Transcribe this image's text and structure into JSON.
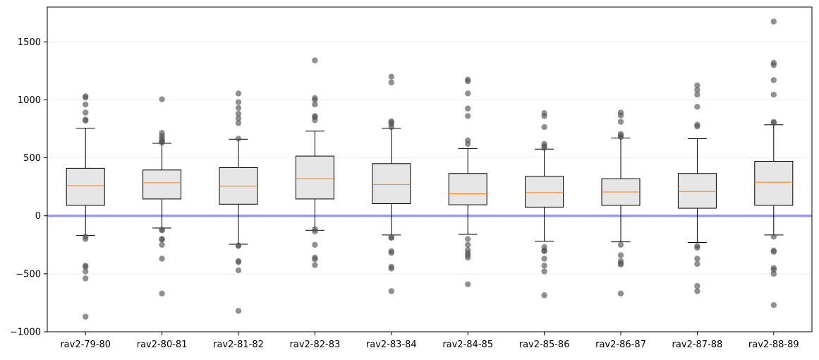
{
  "chart_data": {
    "type": "boxplot",
    "categories": [
      "rav2-79-80",
      "rav2-80-81",
      "rav2-81-82",
      "rav2-82-83",
      "rav2-83-84",
      "rav2-84-85",
      "rav2-85-86",
      "rav2-86-87",
      "rav2-87-88",
      "rav2-88-89"
    ],
    "ylim": [
      -1000,
      1800
    ],
    "yticks": [
      -1000,
      -500,
      0,
      500,
      1000,
      1500
    ],
    "ytick_labels": [
      "−1000",
      "−500",
      "0",
      "500",
      "1000",
      "1500"
    ],
    "grid": "horizontal",
    "reference_line": {
      "y": 0,
      "color": "#9999ee"
    },
    "colors": {
      "box_fill": "#e6e6e6",
      "median": "#ff7f0e",
      "outlier": "#555555",
      "grid": "#eeeeee"
    },
    "boxes": [
      {
        "q1": 90,
        "median": 260,
        "q3": 410,
        "whisker_low": -170,
        "whisker_high": 755,
        "outliers": [
          1030,
          1020,
          960,
          890,
          830,
          820,
          -180,
          -200,
          -430,
          -440,
          -480,
          -540,
          -870
        ]
      },
      {
        "q1": 145,
        "median": 285,
        "q3": 395,
        "whisker_low": -105,
        "whisker_high": 625,
        "outliers": [
          1005,
          715,
          690,
          670,
          650,
          640,
          630,
          -120,
          -125,
          -200,
          -205,
          -250,
          -370,
          -670
        ]
      },
      {
        "q1": 100,
        "median": 255,
        "q3": 415,
        "whisker_low": -245,
        "whisker_high": 660,
        "outliers": [
          1055,
          980,
          930,
          880,
          840,
          800,
          665,
          -255,
          -260,
          -390,
          -400,
          -470,
          -820
        ]
      },
      {
        "q1": 145,
        "median": 320,
        "q3": 515,
        "whisker_low": -125,
        "whisker_high": 730,
        "outliers": [
          1340,
          1015,
          1000,
          960,
          860,
          850,
          825,
          -115,
          -135,
          -250,
          -360,
          -375,
          -425
        ]
      },
      {
        "q1": 105,
        "median": 270,
        "q3": 450,
        "whisker_low": -165,
        "whisker_high": 755,
        "outliers": [
          1200,
          1150,
          815,
          805,
          790,
          765,
          -185,
          -190,
          -305,
          -320,
          -440,
          -455,
          -650
        ]
      },
      {
        "q1": 95,
        "median": 190,
        "q3": 365,
        "whisker_low": -160,
        "whisker_high": 580,
        "outliers": [
          1175,
          1160,
          1055,
          925,
          860,
          650,
          620,
          -200,
          -250,
          -295,
          -320,
          -340,
          -360,
          -590
        ]
      },
      {
        "q1": 75,
        "median": 200,
        "q3": 340,
        "whisker_low": -220,
        "whisker_high": 575,
        "outliers": [
          885,
          860,
          765,
          620,
          600,
          585,
          -270,
          -300,
          -305,
          -370,
          -430,
          -480,
          -685
        ]
      },
      {
        "q1": 90,
        "median": 205,
        "q3": 320,
        "whisker_low": -225,
        "whisker_high": 670,
        "outliers": [
          890,
          865,
          810,
          705,
          690,
          680,
          -250,
          -340,
          -390,
          -410,
          -420,
          -670
        ]
      },
      {
        "q1": 65,
        "median": 210,
        "q3": 365,
        "whisker_low": -230,
        "whisker_high": 665,
        "outliers": [
          1125,
          1085,
          1045,
          940,
          785,
          770,
          -260,
          -275,
          -370,
          -415,
          -605,
          -650
        ]
      },
      {
        "q1": 90,
        "median": 290,
        "q3": 470,
        "whisker_low": -165,
        "whisker_high": 785,
        "outliers": [
          1675,
          1320,
          1300,
          1170,
          1045,
          810,
          800,
          -180,
          -300,
          -310,
          -450,
          -465,
          -500,
          -770
        ]
      }
    ]
  }
}
